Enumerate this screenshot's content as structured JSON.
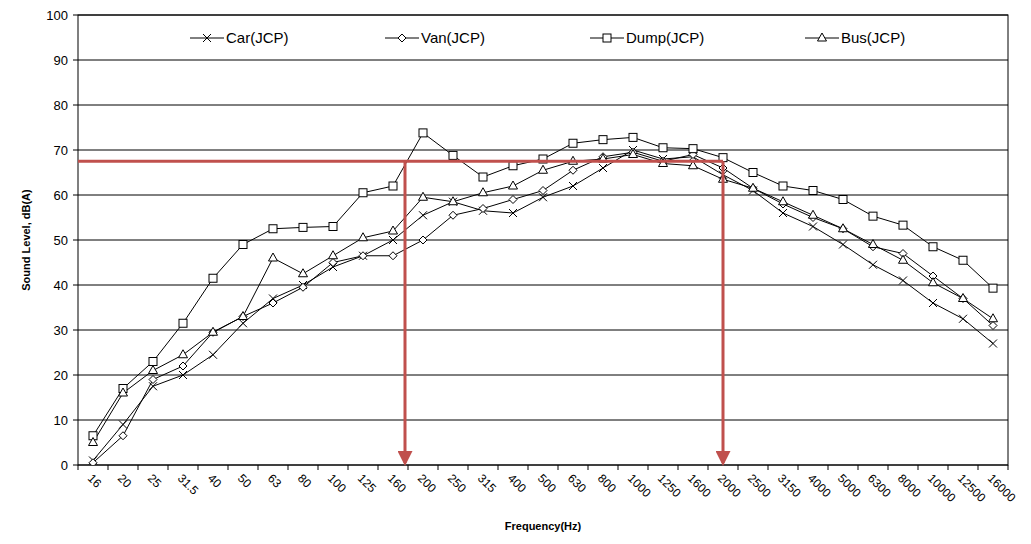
{
  "chart_data": {
    "type": "line",
    "x_label": "Frequency(Hz)",
    "y_label": "Sound Level, dB(A)",
    "categories": [
      "16",
      "20",
      "25",
      "31.5",
      "40",
      "50",
      "63",
      "80",
      "100",
      "125",
      "160",
      "200",
      "250",
      "315",
      "400",
      "500",
      "630",
      "800",
      "1000",
      "1250",
      "1600",
      "2000",
      "2500",
      "3150",
      "4000",
      "5000",
      "6300",
      "8000",
      "10000",
      "12500",
      "16000"
    ],
    "series": [
      {
        "name": "Car(JCP)",
        "color": "#000000",
        "marker": "x",
        "values": [
          1,
          9,
          17.5,
          20,
          24.5,
          31.5,
          37,
          40,
          44,
          46.5,
          50,
          55.5,
          58.5,
          56.5,
          56,
          59.5,
          62,
          66,
          70,
          68,
          68.5,
          64.5,
          61,
          56,
          53,
          49,
          44.5,
          41,
          36,
          32.5,
          27
        ]
      },
      {
        "name": "Van(JCP)",
        "color": "#000000",
        "marker": "diamond",
        "values": [
          0.5,
          6.5,
          19,
          22,
          29.5,
          33,
          36,
          39.5,
          45,
          46.5,
          46.5,
          50,
          55.5,
          57,
          59,
          61,
          65.5,
          68.5,
          69.5,
          67.5,
          69,
          66,
          61.5,
          58,
          55,
          52.5,
          48.5,
          47,
          42,
          37,
          31
        ]
      },
      {
        "name": "Dump(JCP)",
        "color": "#000000",
        "marker": "square",
        "values": [
          6.5,
          17,
          23,
          31.5,
          41.5,
          49,
          52.5,
          52.8,
          53,
          60.5,
          62,
          73.8,
          68.8,
          64,
          66.5,
          68,
          71.5,
          72.3,
          72.8,
          70.5,
          70.3,
          68.3,
          65,
          62,
          61,
          59,
          55.3,
          53.3,
          48.5,
          45.5,
          39.3
        ]
      },
      {
        "name": "Bus(JCP)",
        "color": "#000000",
        "marker": "triangle",
        "values": [
          5,
          16,
          21,
          24.5,
          29.5,
          33,
          46,
          42.5,
          46.5,
          50.5,
          52,
          59.5,
          58.5,
          60.5,
          62,
          65.5,
          67.5,
          68,
          69,
          67,
          66.5,
          63.5,
          61.5,
          58.5,
          55.5,
          52.5,
          49,
          45.5,
          40.5,
          37,
          32.5
        ]
      }
    ],
    "ylim": [
      0,
      100
    ],
    "yticks": [
      0,
      10,
      20,
      30,
      40,
      50,
      60,
      70,
      80,
      90,
      100
    ],
    "grid": true,
    "legend": "top",
    "reference": {
      "y": 67.5,
      "x": [
        10.4,
        21
      ],
      "color": "#c0504d"
    }
  }
}
